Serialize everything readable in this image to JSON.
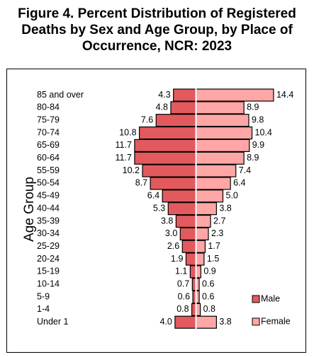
{
  "title": {
    "line1": "Figure 4. Percent Distribution of Registered",
    "line2": "Deaths by Sex and Age Group, by Place of",
    "line3": "Occurrence, NCR: 2023"
  },
  "colors": {
    "male": "#E25A5E",
    "female": "#FFA6A6",
    "center_line": "#FFFFFF",
    "border": "#000000"
  },
  "chart_data": {
    "type": "bar",
    "orientation": "horizontal",
    "subtype": "population-pyramid",
    "title": "Figure 4. Percent Distribution of Registered Deaths by Sex and Age Group, by Place of Occurrence, NCR: 2023",
    "ylabel": "Age Group",
    "xlabel": "",
    "categories": [
      "85 and over",
      "80-84",
      "75-79",
      "70-74",
      "65-69",
      "60-64",
      "55-59",
      "50-54",
      "45-49",
      "40-44",
      "35-39",
      "30-34",
      "25-29",
      "20-24",
      "15-19",
      "10-14",
      "5-9",
      "1-4",
      "Under 1"
    ],
    "series": [
      {
        "name": "Male",
        "side": "left",
        "values": [
          4.3,
          4.8,
          7.6,
          10.8,
          11.7,
          11.7,
          10.2,
          8.7,
          6.4,
          5.3,
          3.8,
          3.0,
          2.6,
          1.9,
          1.1,
          0.7,
          0.6,
          0.8,
          4.0
        ]
      },
      {
        "name": "Female",
        "side": "right",
        "values": [
          14.4,
          8.9,
          9.8,
          10.4,
          9.9,
          8.9,
          7.4,
          6.4,
          5.0,
          3.8,
          2.7,
          2.3,
          1.7,
          1.5,
          0.9,
          0.6,
          0.6,
          0.8,
          3.8
        ]
      }
    ],
    "data_label_texts": {
      "Male": [
        "4.3",
        "4.8",
        "7.6",
        "10.8",
        "11.7",
        "11.7",
        "10.2",
        "8.7",
        "6.4",
        "5.3",
        "3.8",
        "3.0",
        "2.6",
        "1.9",
        "1.1",
        "0.7",
        "0.6",
        "0.8",
        "4.0"
      ],
      "Female": [
        "14.4",
        "8.9",
        "9.8",
        "10.4",
        "9.9",
        "8.9",
        "7.4",
        "6.4",
        "5.0",
        "3.8",
        "2.7",
        "2.3",
        "1.7",
        "1.5",
        "0.9",
        "0.6",
        "0.6",
        "0.8",
        "3.8"
      ]
    },
    "legend": {
      "position": "bottom-right",
      "entries": [
        "Male",
        "Female"
      ]
    },
    "grid": false
  }
}
